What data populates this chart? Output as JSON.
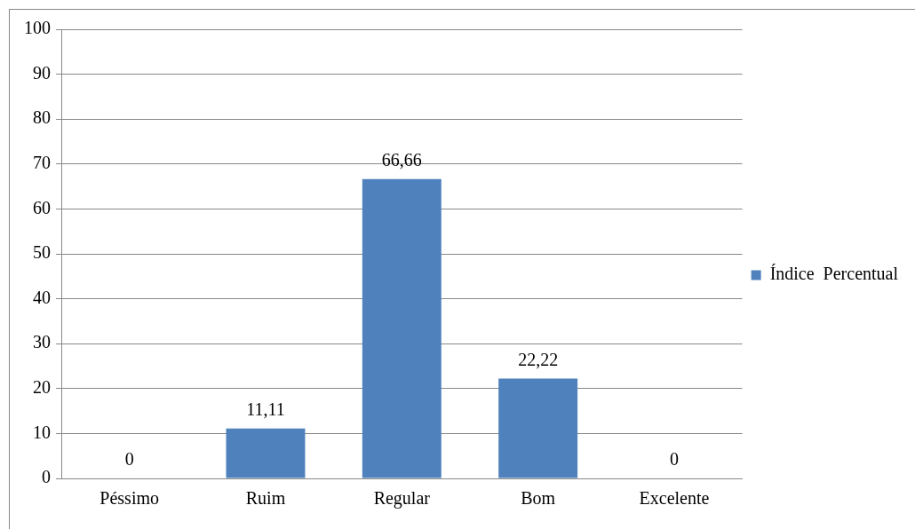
{
  "chart_data": {
    "type": "bar",
    "categories": [
      "Péssimo",
      "Ruim",
      "Regular",
      "Bom",
      "Excelente"
    ],
    "series": [
      {
        "name": "Índice  Percentual",
        "color": "#4f81bd",
        "values": [
          0,
          11.11,
          66.66,
          22.22,
          0
        ],
        "value_labels": [
          "0",
          "11,11",
          "66,66",
          "22,22",
          "0"
        ]
      }
    ],
    "ylim": [
      0,
      100
    ],
    "yticks": [
      0,
      10,
      20,
      30,
      40,
      50,
      60,
      70,
      80,
      90,
      100
    ],
    "grid": "y",
    "legend": "right"
  }
}
